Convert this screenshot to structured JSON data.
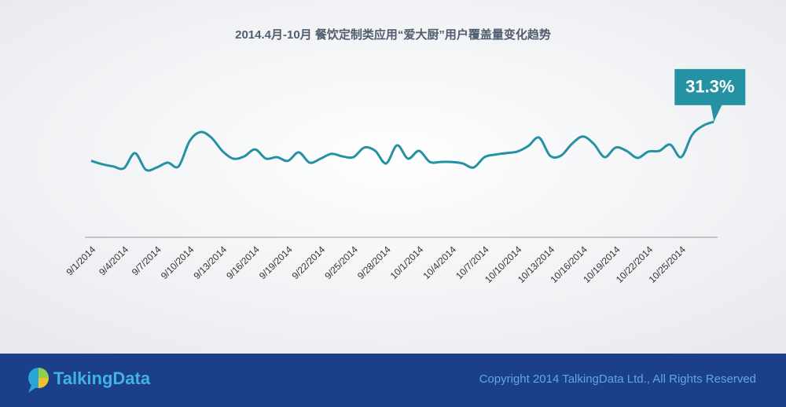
{
  "chart_data": {
    "type": "line",
    "title": "2014.4月-10月 餐饮定制类应用“爱大厨”用户覆盖量变化趋势",
    "categories": [
      "9/1/2014",
      null,
      null,
      "9/4/2014",
      null,
      null,
      "9/7/2014",
      null,
      null,
      "9/10/2014",
      null,
      null,
      "9/13/2014",
      null,
      null,
      "9/16/2014",
      null,
      null,
      "9/19/2014",
      null,
      null,
      "9/22/2014",
      null,
      null,
      "9/25/2014",
      null,
      null,
      "9/28/2014",
      null,
      null,
      "10/1/2014",
      null,
      null,
      "10/4/2014",
      null,
      null,
      "10/7/2014",
      null,
      null,
      "10/10/2014",
      null,
      null,
      "10/13/2014",
      null,
      null,
      "10/16/2014",
      null,
      null,
      "10/19/2014",
      null,
      null,
      "10/22/2014",
      null,
      null,
      "10/25/2014",
      null,
      null,
      null
    ],
    "series": [
      {
        "name": "用户覆盖量",
        "color": "#2592a3",
        "values": [
          20.7,
          19.8,
          19.2,
          18.7,
          22.8,
          18.3,
          18.9,
          20.2,
          19.2,
          26.0,
          28.5,
          27.0,
          23.4,
          21.3,
          21.9,
          23.8,
          21.3,
          21.7,
          20.7,
          23.0,
          20.2,
          21.3,
          22.6,
          21.9,
          21.7,
          24.3,
          23.4,
          20.0,
          24.9,
          21.3,
          23.4,
          20.4,
          20.4,
          20.4,
          20.0,
          18.9,
          21.7,
          22.4,
          22.8,
          23.2,
          24.7,
          27.0,
          22.1,
          22.1,
          25.3,
          27.3,
          25.3,
          21.7,
          24.3,
          23.4,
          21.5,
          23.2,
          23.4,
          25.1,
          21.7,
          27.7,
          30.2,
          31.3
        ],
        "value_labels": [
          null,
          null,
          null,
          null,
          null,
          null,
          null,
          null,
          null,
          null,
          null,
          null,
          null,
          null,
          null,
          null,
          null,
          null,
          null,
          null,
          null,
          null,
          null,
          null,
          null,
          null,
          null,
          null,
          null,
          null,
          null,
          null,
          null,
          null,
          null,
          null,
          null,
          null,
          null,
          null,
          null,
          null,
          null,
          null,
          null,
          null,
          null,
          null,
          null,
          null,
          null,
          null,
          null,
          null,
          null,
          null,
          null,
          "31.3%"
        ]
      }
    ],
    "ylim": [
      0,
      40
    ]
  },
  "footer": {
    "logo": "TalkingData",
    "copyright": "Copyright 2014 TalkingData Ltd., All Rights Reserved"
  }
}
